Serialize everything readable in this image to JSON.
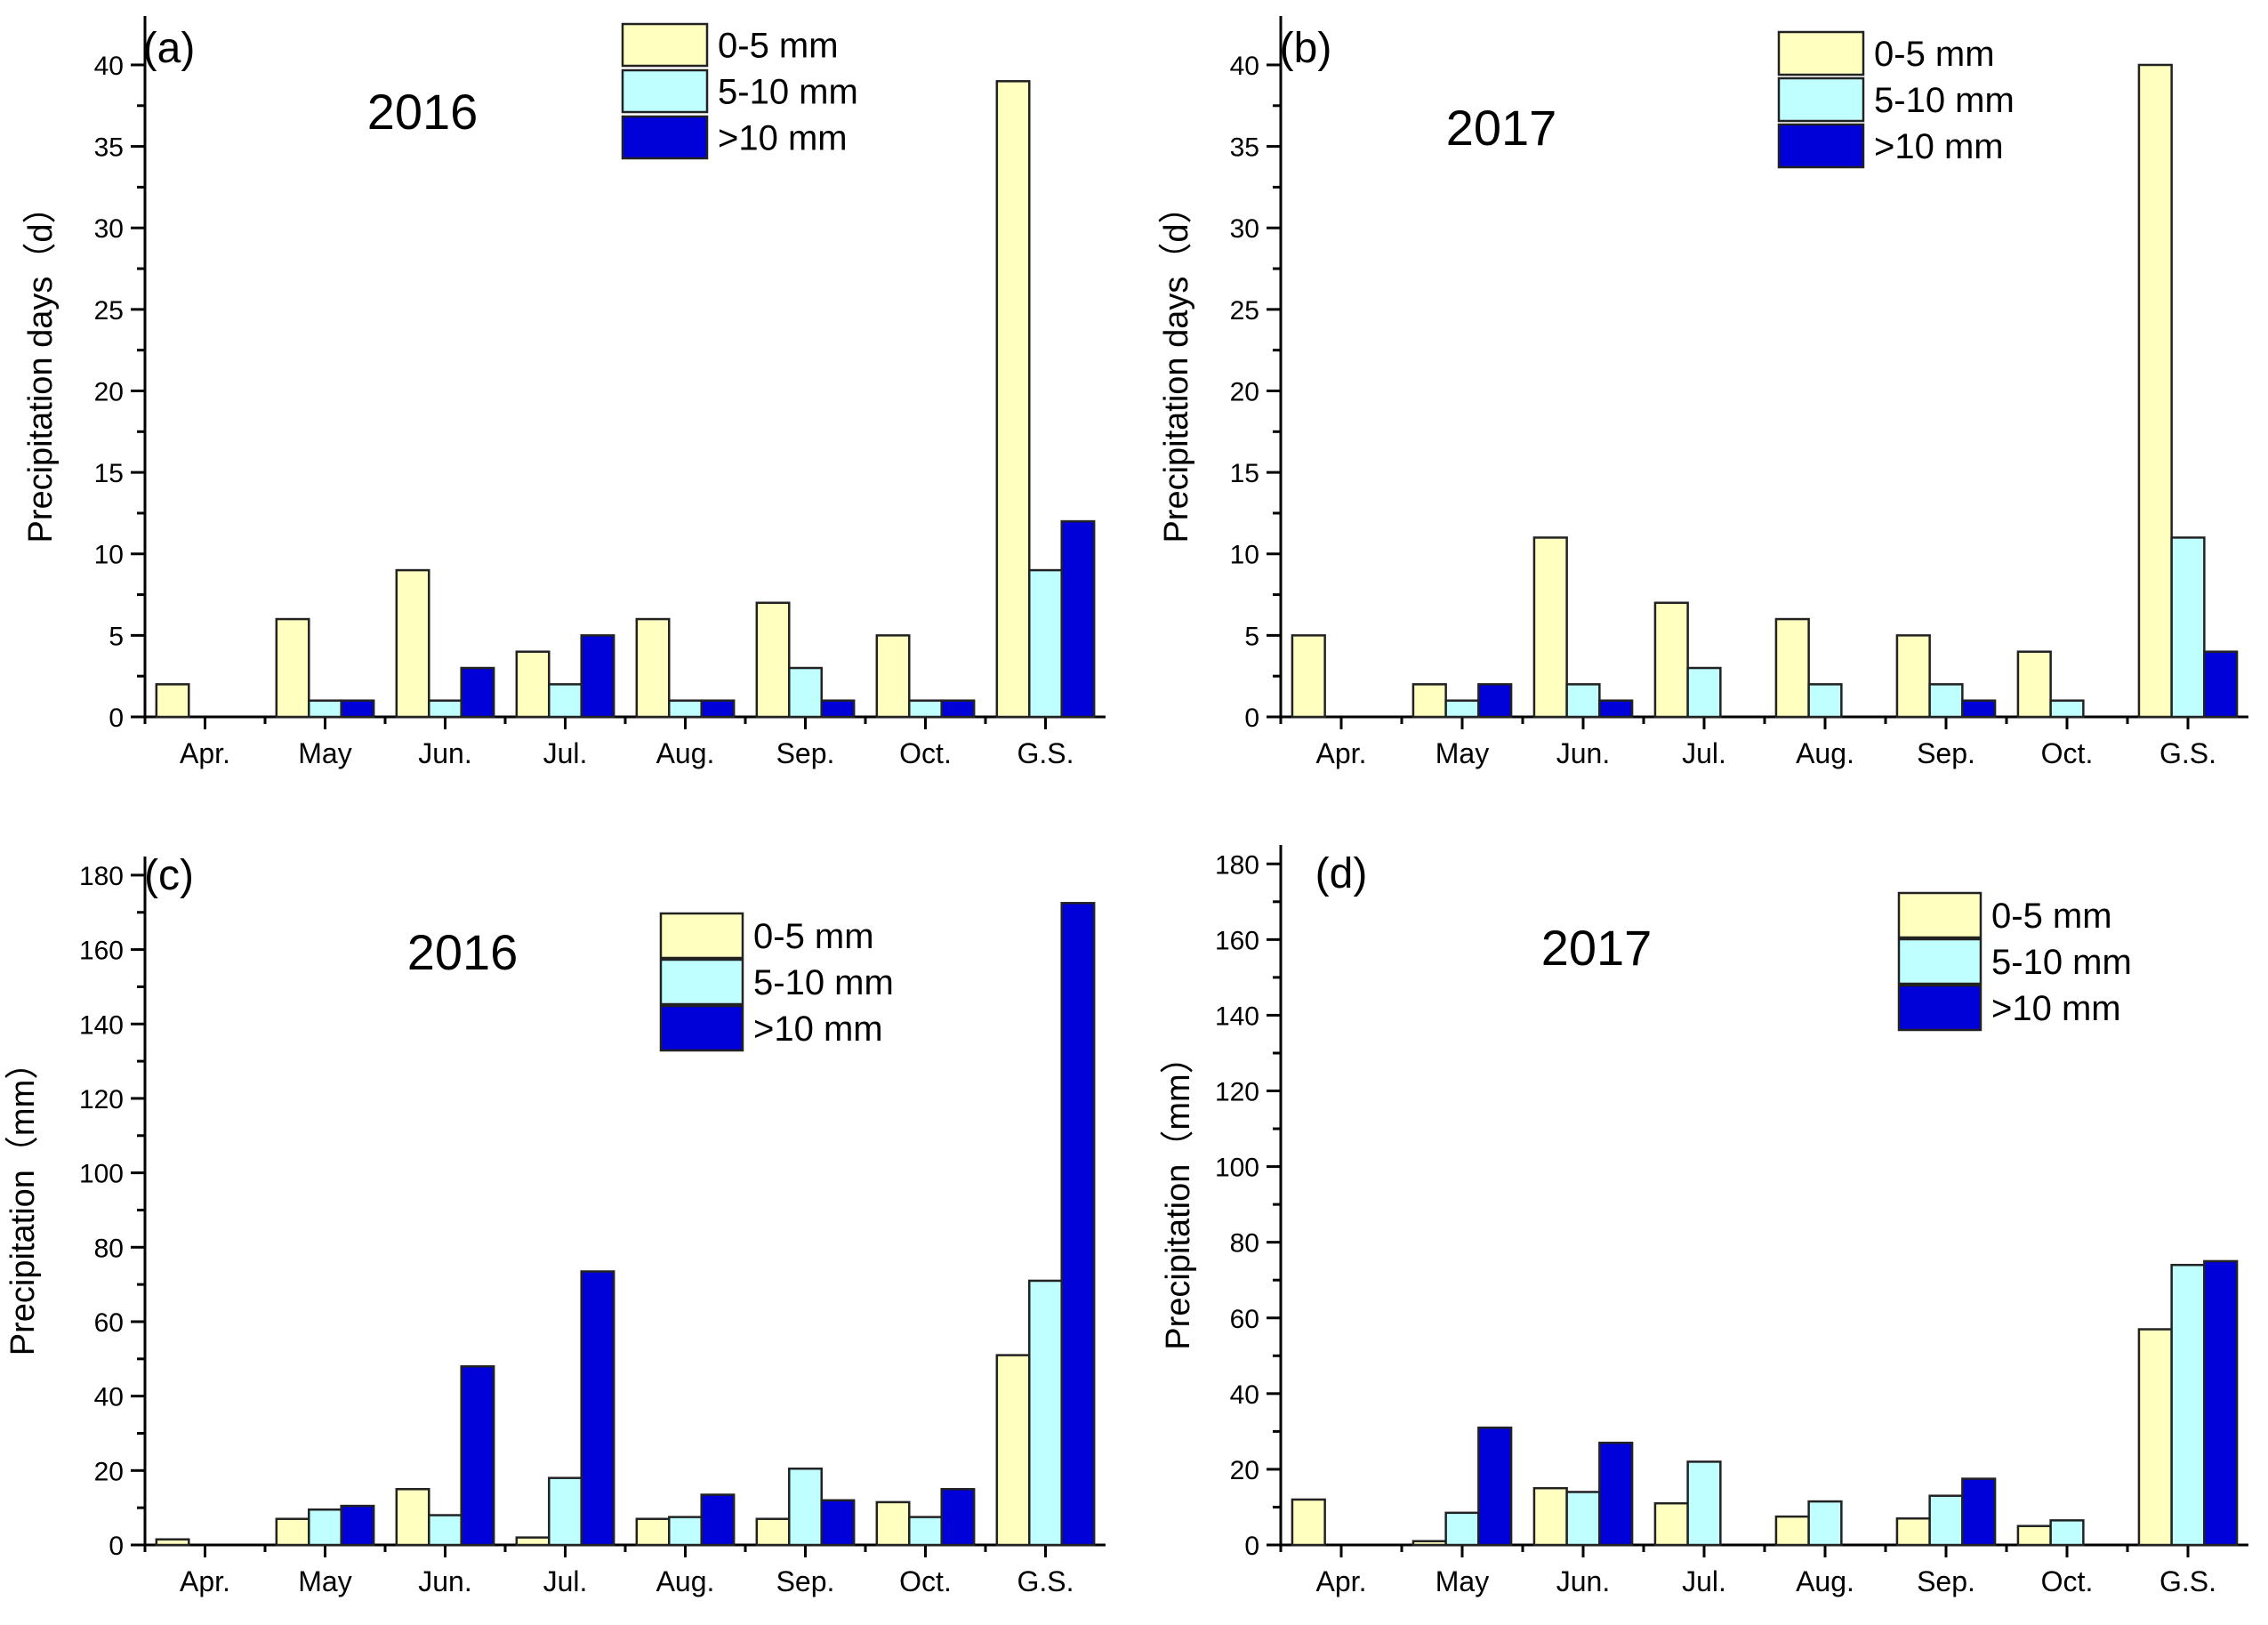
{
  "chart_data": [
    {
      "type": "bar",
      "panel": "(a)",
      "year": "2016",
      "ylabel": "Precipitation days（d）",
      "ylim": [
        0,
        43
      ],
      "yticks": [
        0,
        5,
        10,
        15,
        20,
        25,
        30,
        35,
        40
      ],
      "categories": [
        "Apr.",
        "May",
        "Jun.",
        "Jul.",
        "Aug.",
        "Sep.",
        "Oct.",
        "G.S."
      ],
      "series": [
        {
          "name": "0-5 mm",
          "color": "#FFFFC0",
          "values": [
            2,
            6,
            9,
            4,
            6,
            7,
            5,
            39
          ]
        },
        {
          "name": "5-10 mm",
          "color": "#C0FFFF",
          "values": [
            0,
            1,
            1,
            2,
            1,
            3,
            1,
            9
          ]
        },
        {
          "name": ">10 mm",
          "color": "#0000D8",
          "values": [
            0,
            1,
            3,
            5,
            1,
            1,
            1,
            12
          ]
        }
      ],
      "legend": "top-center"
    },
    {
      "type": "bar",
      "panel": "(b)",
      "year": "2017",
      "ylabel": "Precipitation days（d）",
      "ylim": [
        0,
        43
      ],
      "yticks": [
        0,
        5,
        10,
        15,
        20,
        25,
        30,
        35,
        40
      ],
      "categories": [
        "Apr.",
        "May",
        "Jun.",
        "Jul.",
        "Aug.",
        "Sep.",
        "Oct.",
        "G.S."
      ],
      "series": [
        {
          "name": "0-5 mm",
          "color": "#FFFFC0",
          "values": [
            5,
            2,
            11,
            7,
            6,
            5,
            4,
            40
          ]
        },
        {
          "name": "5-10 mm",
          "color": "#C0FFFF",
          "values": [
            0,
            1,
            2,
            3,
            2,
            2,
            1,
            11
          ]
        },
        {
          "name": ">10 mm",
          "color": "#0000D8",
          "values": [
            0,
            2,
            1,
            0,
            0,
            1,
            0,
            4
          ]
        }
      ],
      "legend": "top-right"
    },
    {
      "type": "bar",
      "panel": "(c)",
      "year": "2016",
      "ylabel": "Precipitation（mm）",
      "ylim": [
        0,
        185
      ],
      "yticks": [
        0,
        20,
        40,
        60,
        80,
        100,
        120,
        140,
        160,
        180
      ],
      "categories": [
        "Apr.",
        "May",
        "Jun.",
        "Jul.",
        "Aug.",
        "Sep.",
        "Oct.",
        "G.S."
      ],
      "series": [
        {
          "name": "0-5 mm",
          "color": "#FFFFC0",
          "values": [
            1.5,
            7,
            15,
            2,
            7,
            7,
            11.5,
            51
          ]
        },
        {
          "name": "5-10 mm",
          "color": "#C0FFFF",
          "values": [
            0,
            9.5,
            8,
            18,
            7.5,
            20.5,
            7.5,
            71
          ]
        },
        {
          "name": ">10 mm",
          "color": "#0000D8",
          "values": [
            0,
            10.5,
            48,
            73.5,
            13.5,
            12,
            15,
            172.5
          ]
        }
      ],
      "legend": "top-center"
    },
    {
      "type": "bar",
      "panel": "(d)",
      "year": "2017",
      "ylabel": "Precipitation（mm）",
      "ylim": [
        0,
        185
      ],
      "yticks": [
        0,
        20,
        40,
        60,
        80,
        100,
        120,
        140,
        160,
        180
      ],
      "categories": [
        "Apr.",
        "May",
        "Jun.",
        "Jul.",
        "Aug.",
        "Sep.",
        "Oct.",
        "G.S."
      ],
      "series": [
        {
          "name": "0-5 mm",
          "color": "#FFFFC0",
          "values": [
            12,
            1,
            15,
            11,
            7.5,
            7,
            5,
            57
          ]
        },
        {
          "name": "5-10 mm",
          "color": "#C0FFFF",
          "values": [
            0,
            8.5,
            14,
            22,
            11.5,
            13,
            6.5,
            74
          ]
        },
        {
          "name": ">10 mm",
          "color": "#0000D8",
          "values": [
            0,
            31,
            27,
            0,
            0,
            17.5,
            0,
            75
          ]
        }
      ],
      "legend": "top-right"
    }
  ]
}
